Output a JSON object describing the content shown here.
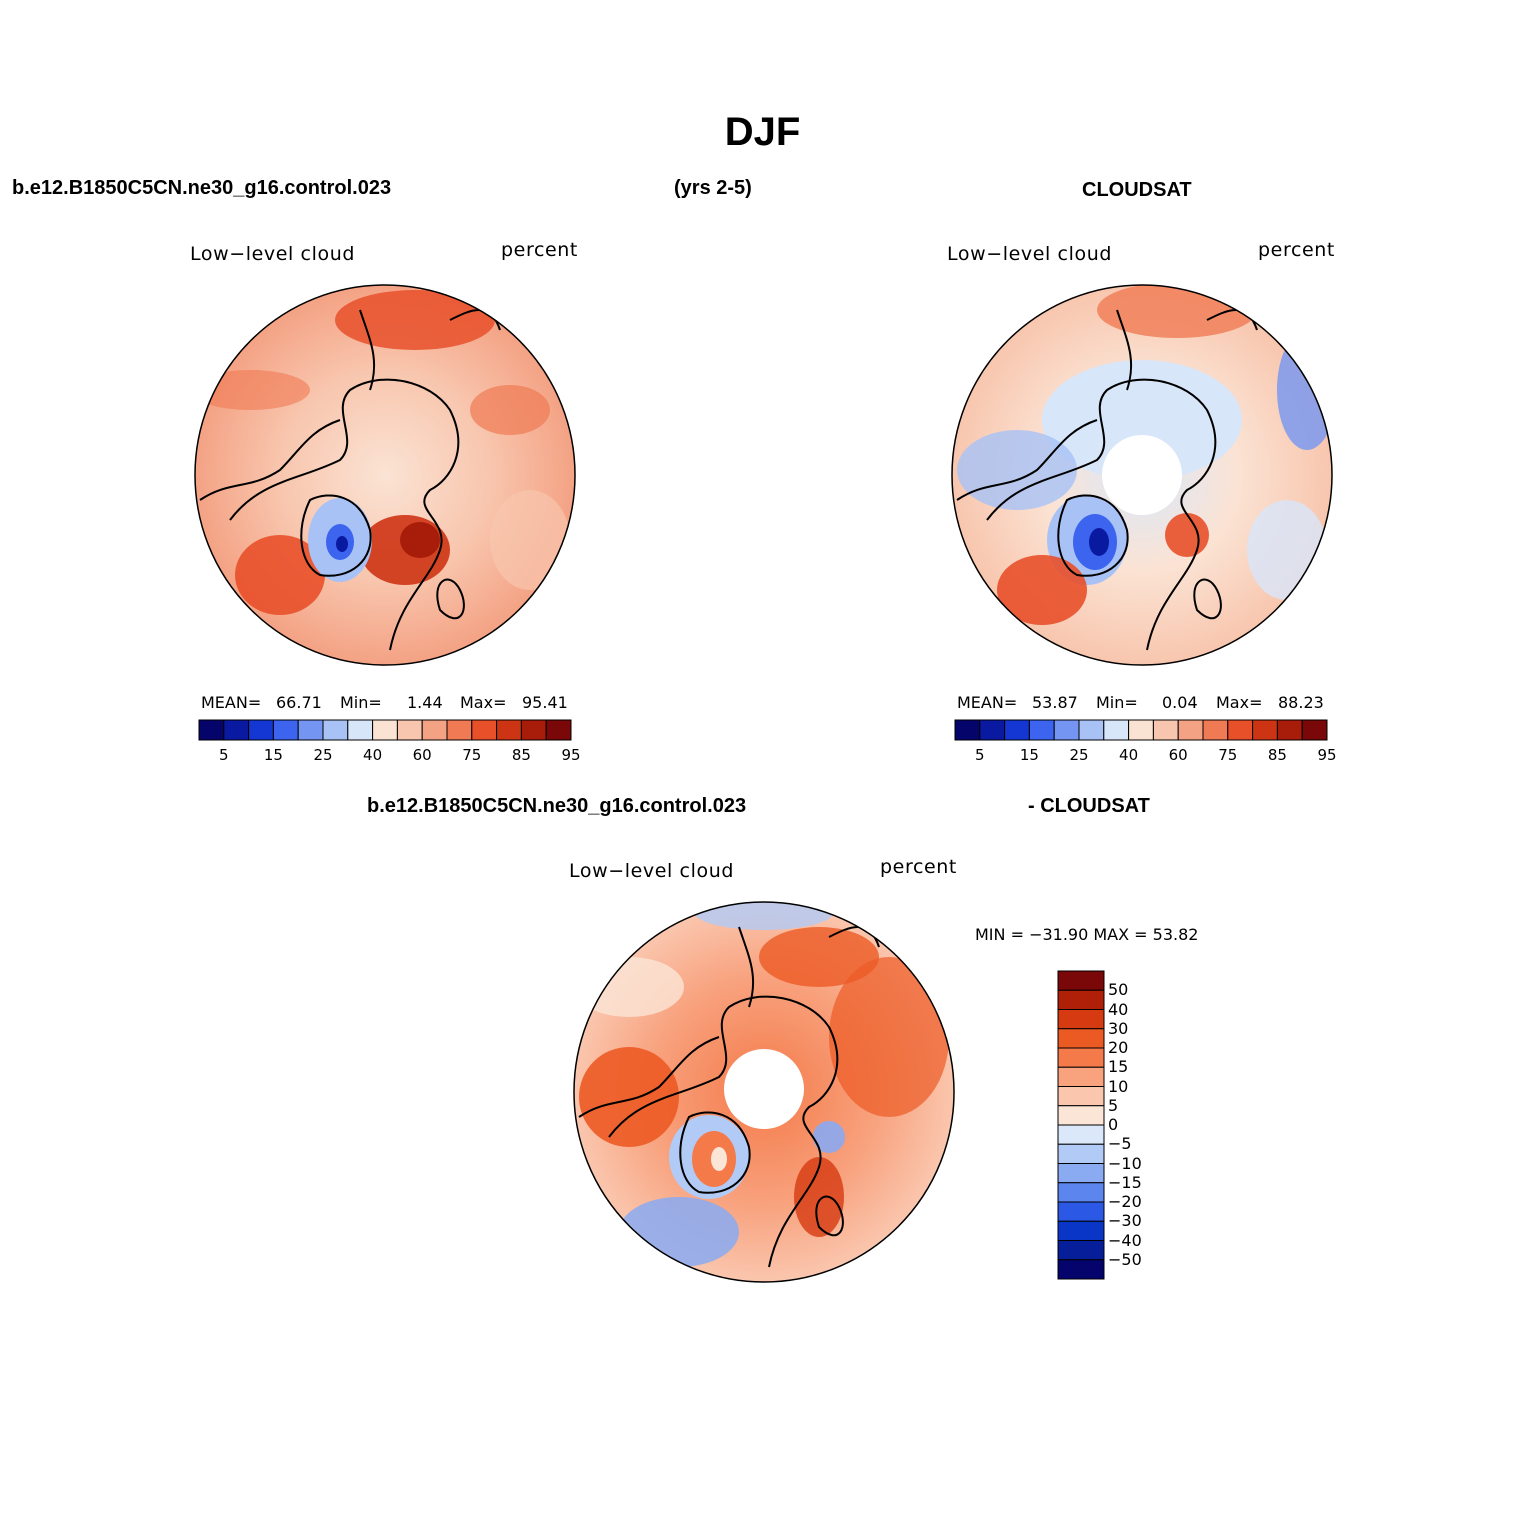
{
  "figure": {
    "title": "DJF",
    "case_name": "b.e12.B1850C5CN.ne30_g16.control.023",
    "years": "(yrs 2-5)",
    "obs_name": "CLOUDSAT",
    "diff_right_label": "- CLOUDSAT"
  },
  "panels": [
    {
      "variable": "Low−level cloud",
      "units": "percent",
      "mean_label": "MEAN=",
      "mean": "66.71",
      "min_label": "Min=",
      "min": "1.44",
      "max_label": "Max=",
      "max": "95.41"
    },
    {
      "variable": "Low−level cloud",
      "units": "percent",
      "mean_label": "MEAN=",
      "mean": "53.87",
      "min_label": "Min=",
      "min": "0.04",
      "max_label": "Max=",
      "max": "88.23"
    },
    {
      "variable": "Low−level cloud",
      "units": "percent",
      "minmax_text": "MIN = −31.90 MAX =  53.82"
    }
  ],
  "colorbar_abs": {
    "colors": [
      "#04046a",
      "#0a1aa0",
      "#1436d2",
      "#3c64ee",
      "#7496f2",
      "#a8c2f6",
      "#d8e6fa",
      "#fbe3d4",
      "#f8c6ae",
      "#f4a284",
      "#f07a54",
      "#e8502a",
      "#cd3414",
      "#a81c0a",
      "#7a0808"
    ],
    "tick_labels": [
      "5",
      "15",
      "25",
      "40",
      "60",
      "75",
      "85",
      "95"
    ]
  },
  "colorbar_diff": {
    "colors": [
      "#7a0808",
      "#b02008",
      "#d63a10",
      "#ec5a24",
      "#f47a4a",
      "#f8a27e",
      "#fac6ae",
      "#fbe5d6",
      "#dae8fa",
      "#b2cbf6",
      "#8aaaf2",
      "#5c86ee",
      "#2c58e6",
      "#0a36c8",
      "#061e9a",
      "#04046c"
    ],
    "tick_labels": [
      "50",
      "40",
      "30",
      "20",
      "15",
      "10",
      "5",
      "0",
      "−5",
      "−10",
      "−15",
      "−20",
      "−30",
      "−40",
      "−50"
    ]
  }
}
